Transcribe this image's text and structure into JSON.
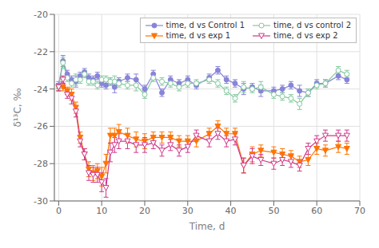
{
  "chart_data": {
    "type": "line",
    "xlabel": "Time, d",
    "ylabel": "δ¹³C, ‰",
    "x": [
      0,
      1,
      2,
      3,
      4,
      5,
      6,
      7,
      8,
      9,
      10,
      11,
      12,
      13,
      14,
      16,
      18,
      20,
      22,
      24,
      26,
      28,
      30,
      32,
      35,
      37,
      39,
      41,
      43,
      45,
      47,
      50,
      52,
      54,
      56,
      58,
      60,
      62,
      65,
      67
    ],
    "series": [
      {
        "name": "time, d vs Control 1",
        "marker": "circle",
        "values": [
          -23.8,
          -22.5,
          -23.2,
          -23.5,
          -23.6,
          -23.3,
          -23.1,
          -23.4,
          -23.5,
          -23.3,
          -23.7,
          -23.8,
          -23.6,
          -23.9,
          -23.6,
          -23.4,
          -23.5,
          -24.0,
          -23.2,
          -24.2,
          -23.5,
          -23.7,
          -23.5,
          -23.8,
          -23.4,
          -23.0,
          -23.5,
          -23.7,
          -24.0,
          -23.9,
          -24.1,
          -24.1,
          -24.0,
          -23.8,
          -24.1,
          -24.2,
          -23.7,
          -23.7,
          -23.3,
          -23.5
        ],
        "yerr": [
          0.2,
          0.3,
          0.2,
          0.2,
          0.3,
          0.2,
          0.2,
          0.2,
          0.2,
          0.2,
          0.2,
          0.2,
          0.2,
          0.3,
          0.2,
          0.2,
          0.3,
          0.2,
          0.2,
          0.2,
          0.2,
          0.2,
          0.2,
          0.2,
          0.2,
          0.2,
          0.2,
          0.2,
          0.3,
          0.2,
          0.3,
          0.2,
          0.2,
          0.2,
          0.3,
          0.2,
          0.2,
          0.2,
          0.2,
          0.2
        ]
      },
      {
        "name": "time, d vs control 2",
        "marker": "circle-open",
        "values": [
          -23.9,
          -22.6,
          -23.4,
          -23.7,
          -23.5,
          -23.5,
          -23.2,
          -23.6,
          -23.6,
          -23.8,
          -23.5,
          -23.5,
          -23.6,
          -23.6,
          -23.7,
          -23.8,
          -23.8,
          -24.3,
          -23.4,
          -23.6,
          -23.7,
          -23.9,
          -23.7,
          -23.7,
          -23.5,
          -23.7,
          -24.1,
          -24.5,
          -23.9,
          -24.0,
          -23.9,
          -24.3,
          -24.4,
          -24.5,
          -24.8,
          -24.2,
          -23.8,
          -23.7,
          -23.0,
          -23.2
        ],
        "yerr": [
          0.2,
          0.3,
          0.2,
          0.2,
          0.3,
          0.2,
          0.2,
          0.2,
          0.2,
          0.2,
          0.2,
          0.2,
          0.2,
          0.3,
          0.2,
          0.2,
          0.3,
          0.2,
          0.2,
          0.2,
          0.2,
          0.2,
          0.2,
          0.2,
          0.2,
          0.2,
          0.2,
          0.2,
          0.3,
          0.2,
          0.3,
          0.2,
          0.2,
          0.2,
          0.3,
          0.2,
          0.2,
          0.2,
          0.2,
          0.2
        ]
      },
      {
        "name": "time, d vs exp 1",
        "marker": "triangle-down",
        "values": [
          -23.9,
          -23.9,
          -24.1,
          -24.3,
          -25.0,
          -26.6,
          -27.5,
          -28.3,
          -28.5,
          -28.4,
          -28.7,
          -28.0,
          -26.5,
          -26.5,
          -26.3,
          -26.5,
          -26.7,
          -26.8,
          -26.6,
          -26.6,
          -26.6,
          -26.8,
          -26.8,
          -26.8,
          -26.4,
          -26.0,
          -26.4,
          -26.4,
          -28.1,
          -27.5,
          -27.3,
          -27.4,
          -27.5,
          -27.6,
          -27.9,
          -27.8,
          -27.2,
          -27.3,
          -27.1,
          -27.2
        ],
        "yerr": [
          0.2,
          0.2,
          0.2,
          0.3,
          0.3,
          0.3,
          0.3,
          0.4,
          0.4,
          0.4,
          0.5,
          0.5,
          0.4,
          0.4,
          0.4,
          0.4,
          0.4,
          0.4,
          0.3,
          0.3,
          0.3,
          0.3,
          0.3,
          0.3,
          0.3,
          0.3,
          0.3,
          0.3,
          0.4,
          0.4,
          0.3,
          0.3,
          0.3,
          0.3,
          0.3,
          0.3,
          0.3,
          0.3,
          0.3,
          0.3
        ]
      },
      {
        "name": "time, d vs exp 2",
        "marker": "triangle-down-open",
        "values": [
          -23.9,
          -23.5,
          -24.3,
          -24.5,
          -25.2,
          -26.8,
          -27.5,
          -28.5,
          -28.6,
          -28.6,
          -29.0,
          -29.3,
          -27.4,
          -27.0,
          -26.8,
          -26.8,
          -27.0,
          -27.0,
          -26.9,
          -27.3,
          -27.0,
          -27.3,
          -27.1,
          -26.5,
          -26.8,
          -26.4,
          -26.8,
          -26.7,
          -28.1,
          -27.6,
          -27.8,
          -28.0,
          -27.8,
          -27.9,
          -28.1,
          -27.2,
          -26.8,
          -26.5,
          -26.5,
          -26.5
        ],
        "yerr": [
          0.2,
          0.2,
          0.2,
          0.3,
          0.3,
          0.3,
          0.3,
          0.4,
          0.4,
          0.4,
          0.5,
          0.5,
          0.5,
          0.4,
          0.4,
          0.4,
          0.4,
          0.4,
          0.3,
          0.3,
          0.3,
          0.3,
          0.3,
          0.3,
          0.3,
          0.3,
          0.3,
          0.3,
          0.4,
          0.4,
          0.3,
          0.3,
          0.3,
          0.3,
          0.3,
          0.3,
          0.3,
          0.3,
          0.3,
          0.3
        ]
      }
    ],
    "xlim": [
      -1,
      70
    ],
    "ylim": [
      -30,
      -20
    ],
    "xticks": [
      0,
      10,
      20,
      30,
      40,
      50,
      60,
      70
    ],
    "yticks": [
      -30,
      -28,
      -26,
      -24,
      -22,
      -20
    ],
    "grid": true,
    "legend": "upper right"
  }
}
